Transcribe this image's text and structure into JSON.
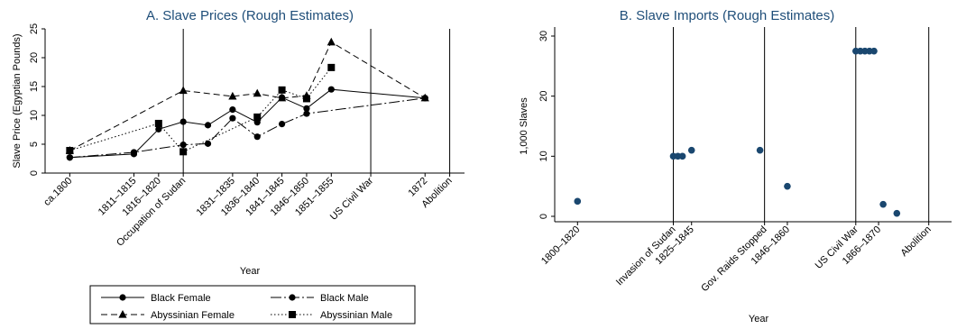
{
  "chart_data": [
    {
      "type": "line",
      "title": "A. Slave Prices (Rough Estimates)",
      "xlabel": "Year",
      "ylabel": "Slave Price (Egyptian Pounds)",
      "ylim": [
        0,
        25
      ],
      "yticks": [
        0,
        5,
        10,
        15,
        20,
        25
      ],
      "xlim": [
        1795,
        1880
      ],
      "xticks": [
        {
          "x": 1800,
          "label": "ca.1800"
        },
        {
          "x": 1813,
          "label": "1811–1815"
        },
        {
          "x": 1818,
          "label": "1816–1820"
        },
        {
          "x": 1823,
          "label": "Occupation of Sudan"
        },
        {
          "x": 1833,
          "label": "1831–1835"
        },
        {
          "x": 1838,
          "label": "1836–1840"
        },
        {
          "x": 1843,
          "label": "1841–1845"
        },
        {
          "x": 1848,
          "label": "1846–1850"
        },
        {
          "x": 1853,
          "label": "1851–1855"
        },
        {
          "x": 1861,
          "label": "US Civil War"
        },
        {
          "x": 1872,
          "label": "1872"
        },
        {
          "x": 1877,
          "label": "Abolition"
        }
      ],
      "vlines": [
        1823,
        1861,
        1877
      ],
      "grid": false,
      "legend_position": "bottom",
      "series": [
        {
          "name": "Black Female",
          "style": "solid",
          "marker": "circle",
          "points": [
            [
              1800,
              2.7
            ],
            [
              1813,
              3.3
            ],
            [
              1818,
              7.6
            ],
            [
              1823,
              8.9
            ],
            [
              1828,
              8.3
            ],
            [
              1833,
              11.0
            ],
            [
              1838,
              8.8
            ],
            [
              1843,
              13.1
            ],
            [
              1848,
              11.2
            ],
            [
              1853,
              14.5
            ],
            [
              1872,
              13.0
            ]
          ]
        },
        {
          "name": "Black Male",
          "style": "longdash-dot",
          "marker": "circle",
          "points": [
            [
              1800,
              2.7
            ],
            [
              1813,
              3.6
            ],
            [
              1823,
              4.9
            ],
            [
              1828,
              5.1
            ],
            [
              1833,
              9.5
            ],
            [
              1838,
              6.3
            ],
            [
              1843,
              8.5
            ],
            [
              1848,
              10.3
            ],
            [
              1872,
              13.0
            ]
          ]
        },
        {
          "name": "Abyssinian Female",
          "style": "dash",
          "marker": "triangle",
          "points": [
            [
              1800,
              3.9
            ],
            [
              1823,
              14.3
            ],
            [
              1833,
              13.3
            ],
            [
              1838,
              13.8
            ],
            [
              1843,
              13.0
            ],
            [
              1848,
              13.4
            ],
            [
              1853,
              22.7
            ],
            [
              1872,
              13.0
            ]
          ]
        },
        {
          "name": "Abyssinian Male",
          "style": "dot",
          "marker": "square",
          "points": [
            [
              1800,
              3.9
            ],
            [
              1818,
              8.6
            ],
            [
              1823,
              3.7
            ],
            [
              1838,
              9.7
            ],
            [
              1843,
              14.4
            ],
            [
              1848,
              12.9
            ],
            [
              1853,
              18.3
            ]
          ]
        }
      ]
    },
    {
      "type": "scatter",
      "title": "B. Slave Imports (Rough Estimates)",
      "xlabel": "Year",
      "ylabel": "1,000 Slaves",
      "ylim": [
        0,
        30
      ],
      "yticks": [
        0,
        10,
        20,
        30
      ],
      "xlim": [
        1795,
        1882
      ],
      "xticks": [
        {
          "x": 1800,
          "label": "1800–1820"
        },
        {
          "x": 1821,
          "label": "Invasion of Sudan"
        },
        {
          "x": 1825,
          "label": "1825–1845"
        },
        {
          "x": 1841,
          "label": "Gov. Raids Stopped"
        },
        {
          "x": 1846,
          "label": "1846–1860"
        },
        {
          "x": 1861,
          "label": "US Civil War"
        },
        {
          "x": 1866,
          "label": "1866–1870"
        },
        {
          "x": 1877,
          "label": "Abolition"
        }
      ],
      "vlines": [
        1821,
        1841,
        1861,
        1877
      ],
      "grid": false,
      "points": [
        [
          1800,
          2.5
        ],
        [
          1821,
          10.0
        ],
        [
          1822,
          10.0
        ],
        [
          1823,
          10.0
        ],
        [
          1825,
          11.0
        ],
        [
          1840,
          11.0
        ],
        [
          1846,
          5.0
        ],
        [
          1861,
          27.5
        ],
        [
          1862,
          27.5
        ],
        [
          1863,
          27.5
        ],
        [
          1864,
          27.5
        ],
        [
          1865,
          27.5
        ],
        [
          1867,
          2.0
        ],
        [
          1870,
          0.5
        ]
      ]
    }
  ]
}
